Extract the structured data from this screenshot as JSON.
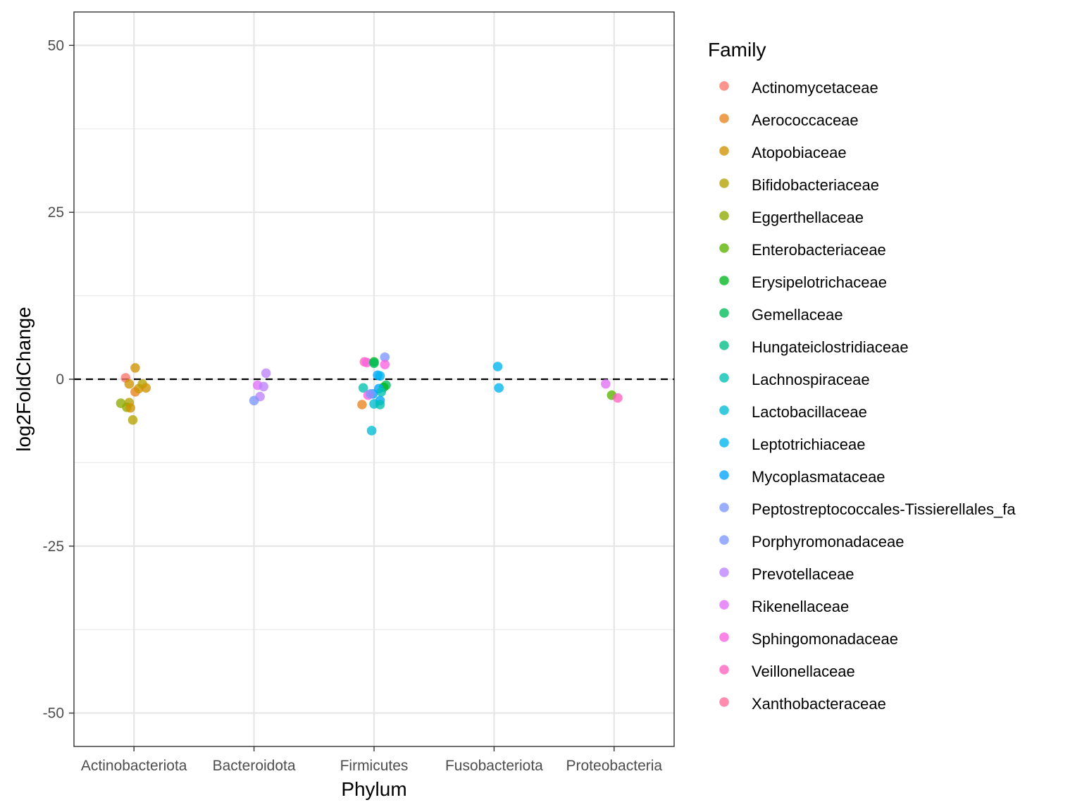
{
  "chart_data": {
    "type": "scatter",
    "xlabel": "Phylum",
    "ylabel": "log2FoldChange",
    "categories": [
      "Actinobacteriota",
      "Bacteroidota",
      "Firmicutes",
      "Fusobacteriota",
      "Proteobacteria"
    ],
    "ylim": [
      -55,
      55
    ],
    "yticks": [
      -50,
      -25,
      0,
      25,
      50
    ],
    "reference_line": {
      "y": 0,
      "style": "dashed"
    },
    "grid": true,
    "legend": {
      "title": "Family",
      "position": "right",
      "entries": [
        {
          "name": "Actinomycetaceae",
          "color": "#F8766D"
        },
        {
          "name": "Aerococcaceae",
          "color": "#E7851E"
        },
        {
          "name": "Atopobiaceae",
          "color": "#D09400"
        },
        {
          "name": "Bifidobacteriaceae",
          "color": "#B2A100"
        },
        {
          "name": "Eggerthellaceae",
          "color": "#8EAB00"
        },
        {
          "name": "Enterobacteriaceae",
          "color": "#5BB300"
        },
        {
          "name": "Erysipelotrichaceae",
          "color": "#00B81F"
        },
        {
          "name": "Gemellaceae",
          "color": "#00BC59"
        },
        {
          "name": "Hungateiclostridiaceae",
          "color": "#00BF87"
        },
        {
          "name": "Lachnospiraceae",
          "color": "#00C0AF"
        },
        {
          "name": "Lactobacillaceae",
          "color": "#00BCD4"
        },
        {
          "name": "Leptotrichiaceae",
          "color": "#00B5EE"
        },
        {
          "name": "Mycoplasmataceae",
          "color": "#00A5FF"
        },
        {
          "name": "Peptostreptococcales-Tissierellales_fa",
          "color": "#7F96FF"
        },
        {
          "name": "Porphyromonadaceae",
          "color": "#7F96FF"
        },
        {
          "name": "Prevotellaceae",
          "color": "#BC81FF"
        },
        {
          "name": "Rikenellaceae",
          "color": "#E26EF7"
        },
        {
          "name": "Sphingomonadaceae",
          "color": "#F863DF"
        },
        {
          "name": "Veillonellaceae",
          "color": "#FF62BF"
        },
        {
          "name": "Xanthobacteraceae",
          "color": "#FF6A98"
        }
      ]
    },
    "points": [
      {
        "x": "Actinobacteriota",
        "jitter": -0.07,
        "y": 0.2,
        "family": "Actinomycetaceae"
      },
      {
        "x": "Actinobacteriota",
        "jitter": 0.01,
        "y": 1.7,
        "family": "Atopobiaceae"
      },
      {
        "x": "Actinobacteriota",
        "jitter": -0.04,
        "y": -0.7,
        "family": "Atopobiaceae"
      },
      {
        "x": "Actinobacteriota",
        "jitter": 0.01,
        "y": -1.9,
        "family": "Aerococcaceae"
      },
      {
        "x": "Actinobacteriota",
        "jitter": 0.04,
        "y": -1.4,
        "family": "Atopobiaceae"
      },
      {
        "x": "Actinobacteriota",
        "jitter": 0.07,
        "y": -0.7,
        "family": "Bifidobacteriaceae"
      },
      {
        "x": "Actinobacteriota",
        "jitter": 0.1,
        "y": -1.3,
        "family": "Atopobiaceae"
      },
      {
        "x": "Actinobacteriota",
        "jitter": -0.11,
        "y": -3.6,
        "family": "Eggerthellaceae"
      },
      {
        "x": "Actinobacteriota",
        "jitter": -0.04,
        "y": -3.5,
        "family": "Bifidobacteriaceae"
      },
      {
        "x": "Actinobacteriota",
        "jitter": -0.06,
        "y": -4.2,
        "family": "Eggerthellaceae"
      },
      {
        "x": "Actinobacteriota",
        "jitter": -0.03,
        "y": -4.3,
        "family": "Atopobiaceae"
      },
      {
        "x": "Actinobacteriota",
        "jitter": -0.01,
        "y": -6.1,
        "family": "Bifidobacteriaceae"
      },
      {
        "x": "Bacteroidota",
        "jitter": 0.1,
        "y": 0.9,
        "family": "Prevotellaceae"
      },
      {
        "x": "Bacteroidota",
        "jitter": 0.03,
        "y": -0.9,
        "family": "Rikenellaceae"
      },
      {
        "x": "Bacteroidota",
        "jitter": 0.08,
        "y": -1.1,
        "family": "Prevotellaceae"
      },
      {
        "x": "Bacteroidota",
        "jitter": 0.05,
        "y": -2.6,
        "family": "Prevotellaceae"
      },
      {
        "x": "Bacteroidota",
        "jitter": 0.0,
        "y": -3.2,
        "family": "Porphyromonadaceae"
      },
      {
        "x": "Firmicutes",
        "jitter": 0.09,
        "y": 3.3,
        "family": "Peptostreptococcales-Tissierellales_fa"
      },
      {
        "x": "Firmicutes",
        "jitter": -0.08,
        "y": 2.6,
        "family": "Veillonellaceae"
      },
      {
        "x": "Firmicutes",
        "jitter": -0.06,
        "y": 2.5,
        "family": "Sphingomonadaceae"
      },
      {
        "x": "Firmicutes",
        "jitter": 0.0,
        "y": 2.6,
        "family": "Erysipelotrichaceae"
      },
      {
        "x": "Firmicutes",
        "jitter": 0.0,
        "y": 2.4,
        "family": "Gemellaceae"
      },
      {
        "x": "Firmicutes",
        "jitter": 0.09,
        "y": 2.2,
        "family": "Sphingomonadaceae"
      },
      {
        "x": "Firmicutes",
        "jitter": 0.03,
        "y": 0.6,
        "family": "Mycoplasmataceae"
      },
      {
        "x": "Firmicutes",
        "jitter": 0.05,
        "y": 0.5,
        "family": "Leptotrichiaceae"
      },
      {
        "x": "Firmicutes",
        "jitter": -0.09,
        "y": -1.3,
        "family": "Lachnospiraceae"
      },
      {
        "x": "Firmicutes",
        "jitter": 0.1,
        "y": -0.9,
        "family": "Gemellaceae"
      },
      {
        "x": "Firmicutes",
        "jitter": 0.08,
        "y": -1.2,
        "family": "Erysipelotrichaceae"
      },
      {
        "x": "Firmicutes",
        "jitter": 0.04,
        "y": -1.4,
        "family": "Mycoplasmataceae"
      },
      {
        "x": "Firmicutes",
        "jitter": 0.06,
        "y": -1.9,
        "family": "Lachnospiraceae"
      },
      {
        "x": "Firmicutes",
        "jitter": -0.01,
        "y": -2.2,
        "family": "Mycoplasmataceae"
      },
      {
        "x": "Firmicutes",
        "jitter": -0.05,
        "y": -2.4,
        "family": "Sphingomonadaceae"
      },
      {
        "x": "Firmicutes",
        "jitter": -0.03,
        "y": -2.2,
        "family": "Porphyromonadaceae"
      },
      {
        "x": "Firmicutes",
        "jitter": 0.05,
        "y": -3.2,
        "family": "Mycoplasmataceae"
      },
      {
        "x": "Firmicutes",
        "jitter": -0.1,
        "y": -3.8,
        "family": "Aerococcaceae"
      },
      {
        "x": "Firmicutes",
        "jitter": 0.0,
        "y": -3.7,
        "family": "Lactobacillaceae"
      },
      {
        "x": "Firmicutes",
        "jitter": 0.05,
        "y": -3.8,
        "family": "Lachnospiraceae"
      },
      {
        "x": "Firmicutes",
        "jitter": -0.02,
        "y": -7.7,
        "family": "Lactobacillaceae"
      },
      {
        "x": "Fusobacteriota",
        "jitter": 0.03,
        "y": 1.9,
        "family": "Leptotrichiaceae"
      },
      {
        "x": "Fusobacteriota",
        "jitter": 0.04,
        "y": -1.3,
        "family": "Leptotrichiaceae"
      },
      {
        "x": "Proteobacteria",
        "jitter": -0.07,
        "y": -0.7,
        "family": "Rikenellaceae"
      },
      {
        "x": "Proteobacteria",
        "jitter": -0.02,
        "y": -2.4,
        "family": "Enterobacteriaceae"
      },
      {
        "x": "Proteobacteria",
        "jitter": 0.03,
        "y": -2.8,
        "family": "Veillonellaceae"
      }
    ]
  }
}
